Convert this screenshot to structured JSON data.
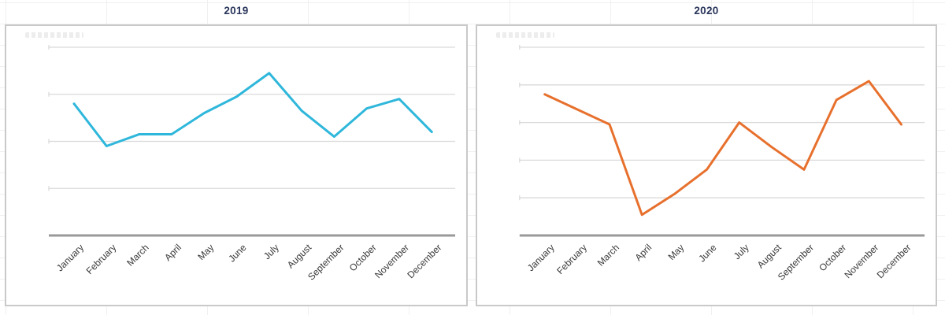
{
  "chart_data": [
    {
      "type": "line",
      "title": "2019",
      "categories": [
        "January",
        "February",
        "March",
        "April",
        "May",
        "June",
        "July",
        "August",
        "September",
        "October",
        "November",
        "December"
      ],
      "values": [
        28,
        19,
        21.5,
        21.5,
        26,
        29.5,
        34.5,
        26.5,
        21,
        27,
        29,
        22
      ],
      "ylim": [
        0,
        40
      ],
      "grid_step": 10,
      "line_color": "#2FB7DB",
      "xlabel": "",
      "ylabel": "",
      "grid": true,
      "legend_position": "none",
      "x_tick_rotation": -45
    },
    {
      "type": "line",
      "title": "2020",
      "categories": [
        "January",
        "February",
        "March",
        "April",
        "May",
        "June",
        "July",
        "August",
        "September",
        "October",
        "November",
        "December"
      ],
      "values": [
        37.5,
        33.5,
        29.5,
        5.5,
        11,
        17.5,
        30,
        23.5,
        17.5,
        36,
        41,
        29.5
      ],
      "ylim": [
        0,
        50
      ],
      "grid_step": 10,
      "line_color": "#E7702D",
      "xlabel": "",
      "ylabel": "",
      "grid": true,
      "legend_position": "none",
      "x_tick_rotation": -45
    }
  ],
  "styles": {
    "title_color": "#29355B",
    "gridline_color": "#DADADA",
    "axis_color": "#999999",
    "label_color": "#3A3A3A",
    "panel_border_color": "#C9C9C9",
    "background_grid_color": "#F0F0F0"
  }
}
